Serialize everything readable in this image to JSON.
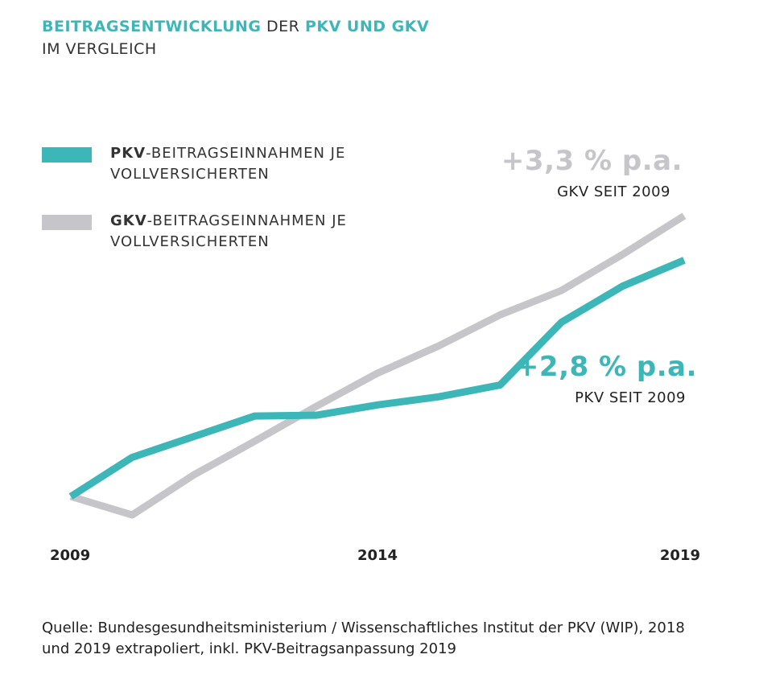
{
  "chart_data": {
    "type": "line",
    "title_parts": [
      "BEITRAGSENTWICKLUNG",
      "DER",
      "PKV UND GKV"
    ],
    "subtitle": "IM VERGLEICH",
    "x": [
      2009,
      2010,
      2011,
      2012,
      2013,
      2014,
      2015,
      2016,
      2017,
      2018,
      2019
    ],
    "xlim": [
      2009,
      2019
    ],
    "xticks": [
      2009,
      2014,
      2019
    ],
    "ylim": [
      95,
      140
    ],
    "series": [
      {
        "name": "PKV-BEITRAGSEINNAHMEN JE VOLLVERSICHERTEN",
        "color": "#3db6b7",
        "values": [
          100,
          105.3,
          108.1,
          110.9,
          111.0,
          112.4,
          113.5,
          115.1,
          123.6,
          128.5,
          132.0
        ]
      },
      {
        "name": "GKV-BEITRAGSEINNAHMEN JE VOLLVERSICHERTEN",
        "color": "#c6c6ca",
        "values": [
          100,
          97.5,
          102.9,
          107.5,
          112.2,
          116.7,
          120.4,
          124.6,
          127.9,
          132.8,
          138.0
        ]
      }
    ],
    "annotations": [
      {
        "text": "+3,3 % p.a.",
        "note": "GKV SEIT 2009"
      },
      {
        "text": "+2,8 % p.a.",
        "note": "PKV SEIT 2009"
      }
    ],
    "source": "Quelle: Bundesgesundheitsministerium / Wissenschaftliches Institut der PKV (WIP), 2018 und 2019 extrapoliert, inkl. PKV-Beitragsanpassung 2019"
  }
}
